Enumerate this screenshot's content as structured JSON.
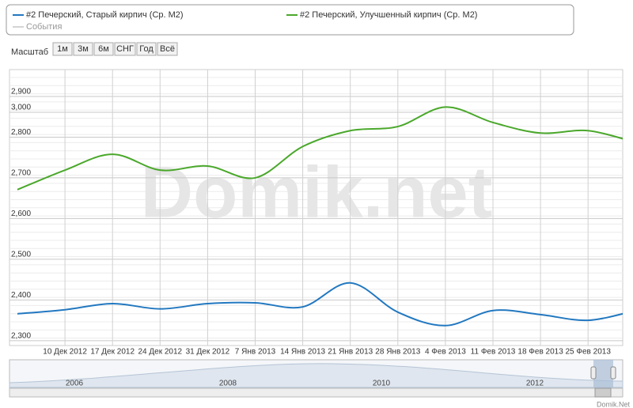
{
  "chart_data": {
    "type": "line",
    "categories": [
      null,
      "10 Дек 2012",
      "17 Дек 2012",
      "24 Дек 2012",
      "31 Дек 2012",
      "7 Янв 2013",
      "14 Янв 2013",
      "21 Янв 2013",
      "28 Янв 2013",
      "4 Фев 2013",
      "11 Фев 2013",
      "18 Фев 2013",
      "25 Фев 2013",
      null
    ],
    "series": [
      {
        "name": "#2 Печерский, Старый кирпич (Ср. М2)",
        "color": "#2278c0",
        "axis": "y",
        "values": [
          2366,
          2376,
          2391,
          2378,
          2391,
          2393,
          2383,
          2442,
          2370,
          2337,
          2374,
          2364,
          2350,
          2374
        ]
      },
      {
        "name": "#2 Печерский, Улучшенный кирпич (Ср. М2)",
        "color": "#4aa82b",
        "axis": "y2",
        "values": [
          2810,
          2858,
          2897,
          2858,
          2868,
          2839,
          2916,
          2955,
          2965,
          3013,
          2975,
          2949,
          2955,
          2926
        ]
      }
    ],
    "events": {
      "name": "События",
      "color": "#aaaaaa"
    },
    "ylim": [
      2288,
      2966
    ],
    "yticks": [
      {
        "value": 2300,
        "label": "2,300"
      },
      {
        "value": 2400,
        "label": "2,400"
      },
      {
        "value": 2500,
        "label": "2,500"
      },
      {
        "value": 2600,
        "label": "2,600"
      },
      {
        "value": 2700,
        "label": "2,700"
      },
      {
        "value": 2800,
        "label": "2,800"
      },
      {
        "value": 2900,
        "label": "2,900"
      }
    ],
    "y2lim": [
      2427,
      3105
    ],
    "y2ticks": [
      {
        "value": 3000,
        "label": "3,000"
      }
    ],
    "grid": true,
    "range_selector": {
      "label": "Масштаб",
      "buttons": [
        "1м",
        "3м",
        "6м",
        "СНГ",
        "Год",
        "Всё"
      ]
    },
    "navigator": {
      "labels": [
        "2006",
        "2008",
        "2010",
        "2012"
      ]
    },
    "watermark": "Domik.net",
    "credits": "Domik.Net"
  }
}
